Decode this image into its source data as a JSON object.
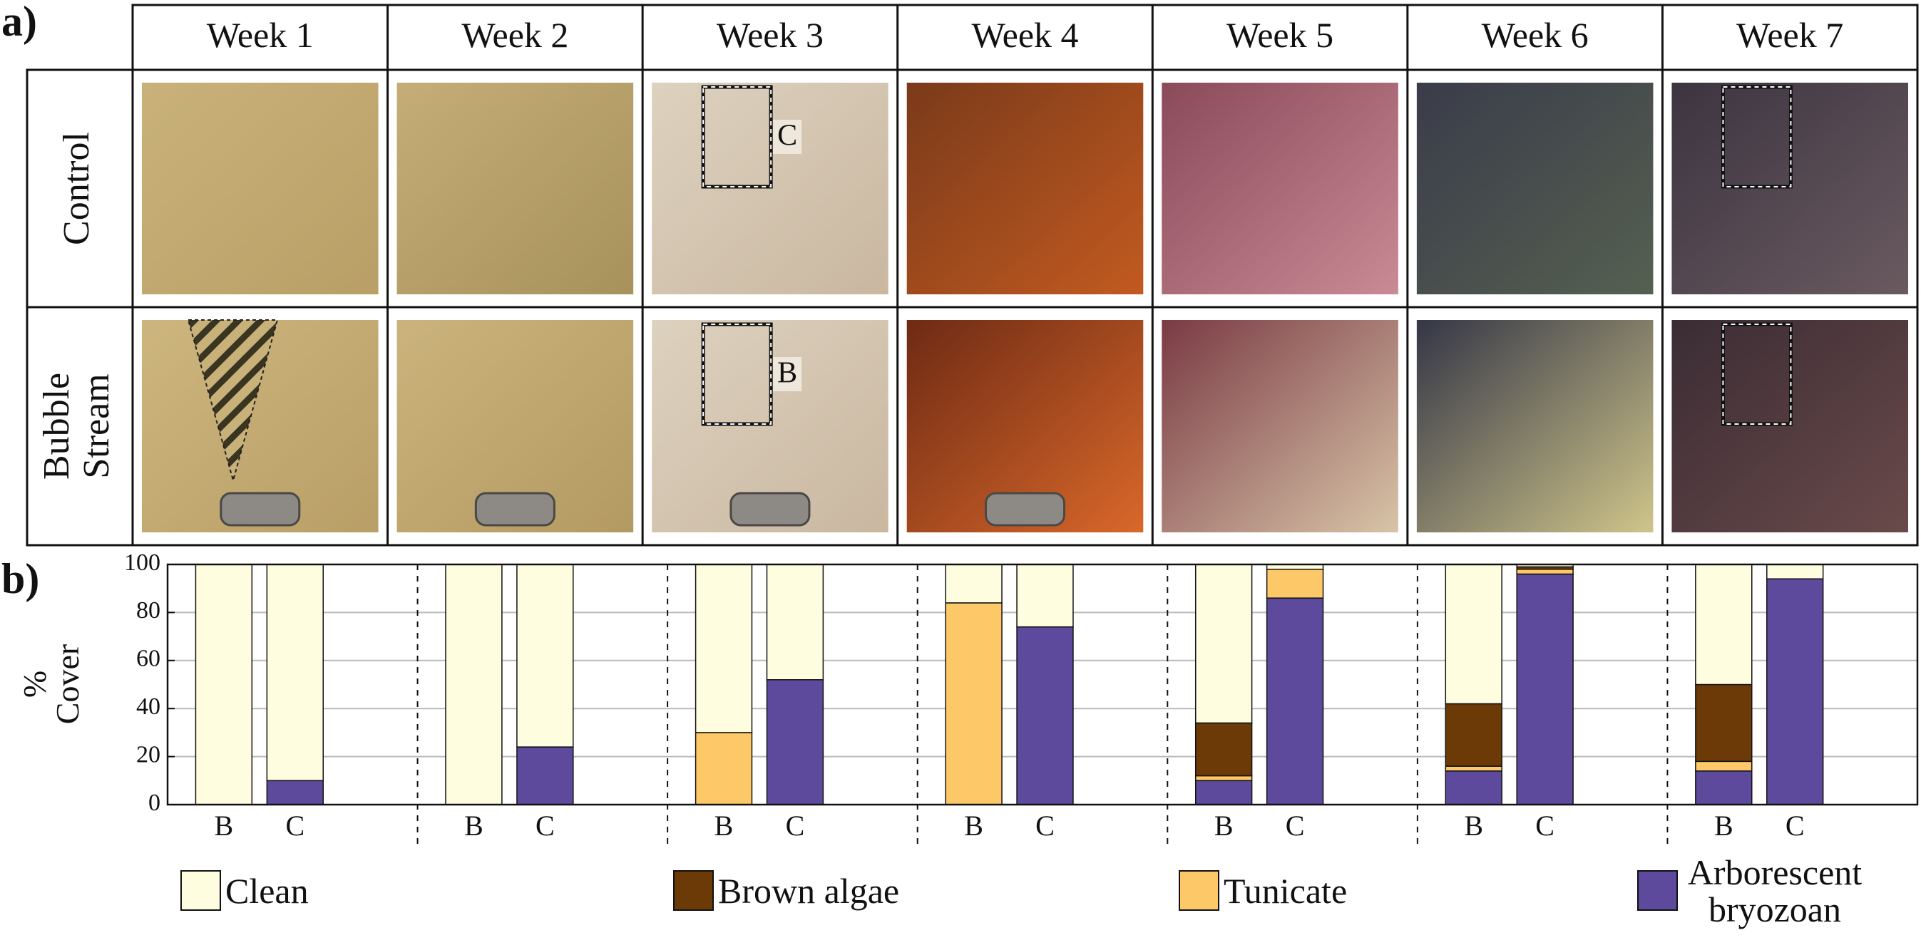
{
  "panel_a": {
    "label": "a)",
    "columns": [
      "Week 1",
      "Week 2",
      "Week 3",
      "Week 4",
      "Week 5",
      "Week 6",
      "Week 7"
    ],
    "rows": [
      {
        "label": [
          "Control"
        ],
        "annotation": "C"
      },
      {
        "label": [
          "Bubble",
          "Stream"
        ],
        "annotation": "B"
      }
    ]
  },
  "chart_data": {
    "type": "stacked_bar",
    "panel_label": "b)",
    "ylabel": [
      "%",
      "Cover"
    ],
    "categories": [
      "B",
      "C",
      "B",
      "C",
      "B",
      "C",
      "B",
      "C",
      "B",
      "C",
      "B",
      "C",
      "B",
      "C"
    ],
    "ylim": [
      0,
      100
    ],
    "yticks": [
      0,
      20,
      40,
      60,
      80,
      100
    ],
    "grid": true,
    "series": [
      {
        "name": "Clean",
        "color": "#fffde0",
        "values": [
          100,
          90,
          100,
          76,
          70,
          48,
          16,
          26,
          66,
          2,
          58,
          1,
          50,
          6
        ]
      },
      {
        "name": "Brown algae",
        "color": "#6b3a06",
        "values": [
          0,
          0,
          0,
          0,
          0,
          0,
          0,
          0,
          22,
          0,
          26,
          1,
          32,
          0
        ]
      },
      {
        "name": "Tunicate",
        "color": "#fdc968",
        "values": [
          0,
          0,
          0,
          0,
          30,
          0,
          84,
          0,
          2,
          12,
          2,
          2,
          4,
          0
        ]
      },
      {
        "name": "Arborescent bryozoan",
        "color": "#5e4a9c",
        "values": [
          0,
          10,
          0,
          24,
          0,
          52,
          0,
          74,
          10,
          86,
          14,
          96,
          14,
          94
        ]
      }
    ]
  }
}
